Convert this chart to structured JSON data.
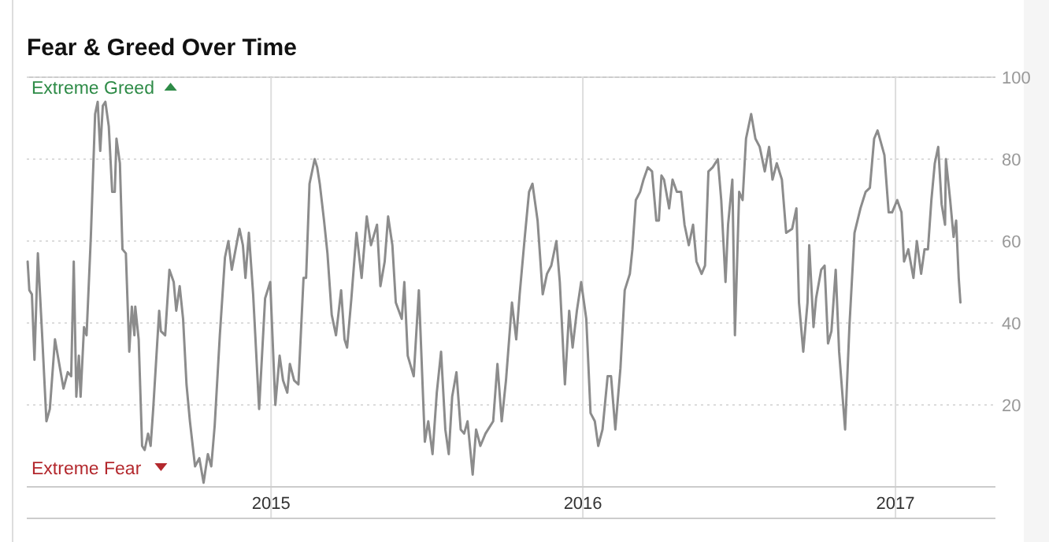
{
  "chart_data": {
    "type": "line",
    "title": "Fear & Greed Over Time",
    "annotations": [
      "Extreme Greed",
      "Extreme Fear"
    ],
    "x": [
      "2014-03-22",
      "2014-03-24",
      "2014-03-27",
      "2014-03-30",
      "2014-04-03",
      "2014-04-08",
      "2014-04-13",
      "2014-04-17",
      "2014-04-23",
      "2014-04-28",
      "2014-05-03",
      "2014-05-08",
      "2014-05-12",
      "2014-05-15",
      "2014-05-18",
      "2014-05-21",
      "2014-05-23",
      "2014-05-27",
      "2014-05-30",
      "2014-06-04",
      "2014-06-09",
      "2014-06-12",
      "2014-06-15",
      "2014-06-18",
      "2014-06-21",
      "2014-06-25",
      "2014-06-29",
      "2014-07-02",
      "2014-07-04",
      "2014-07-08",
      "2014-07-11",
      "2014-07-15",
      "2014-07-19",
      "2014-07-22",
      "2014-07-25",
      "2014-07-26",
      "2014-07-30",
      "2014-08-03",
      "2014-08-06",
      "2014-08-10",
      "2014-08-13",
      "2014-08-16",
      "2014-08-23",
      "2014-08-25",
      "2014-08-30",
      "2014-09-04",
      "2014-09-09",
      "2014-09-12",
      "2014-09-16",
      "2014-09-20",
      "2014-09-24",
      "2014-09-28",
      "2014-10-04",
      "2014-10-09",
      "2014-10-14",
      "2014-10-19",
      "2014-10-23",
      "2014-10-27",
      "2014-11-02",
      "2014-11-08",
      "2014-11-12",
      "2014-11-16",
      "2014-11-25",
      "2014-11-29",
      "2014-12-02",
      "2014-12-06",
      "2014-12-11",
      "2014-12-18",
      "2014-12-25",
      "2014-12-31",
      "2015-01-06",
      "2015-01-11",
      "2015-01-15",
      "2015-01-20",
      "2015-01-23",
      "2015-01-28",
      "2015-02-02",
      "2015-02-08",
      "2015-02-11",
      "2015-02-15",
      "2015-02-21",
      "2015-02-24",
      "2015-02-27",
      "2015-03-04",
      "2015-03-08",
      "2015-03-13",
      "2015-03-18",
      "2015-03-24",
      "2015-03-28",
      "2015-03-31",
      "2015-04-05",
      "2015-04-11",
      "2015-04-17",
      "2015-04-23",
      "2015-04-28",
      "2015-05-05",
      "2015-05-09",
      "2015-05-14",
      "2015-05-18",
      "2015-05-23",
      "2015-05-27",
      "2015-06-03",
      "2015-06-06",
      "2015-06-10",
      "2015-06-17",
      "2015-06-23",
      "2015-06-30",
      "2015-07-04",
      "2015-07-09",
      "2015-07-14",
      "2015-07-19",
      "2015-07-24",
      "2015-07-28",
      "2015-08-01",
      "2015-08-06",
      "2015-08-11",
      "2015-08-15",
      "2015-08-19",
      "2015-08-25",
      "2015-08-29",
      "2015-09-03",
      "2015-09-09",
      "2015-09-18",
      "2015-09-23",
      "2015-09-28",
      "2015-10-03",
      "2015-10-10",
      "2015-10-15",
      "2015-10-19",
      "2015-10-25",
      "2015-10-30",
      "2015-11-03",
      "2015-11-09",
      "2015-11-15",
      "2015-11-20",
      "2015-11-25",
      "2015-12-01",
      "2015-12-05",
      "2015-12-11",
      "2015-12-16",
      "2015-12-20",
      "2015-12-25",
      "2015-12-30",
      "2016-01-05",
      "2016-01-10",
      "2016-01-15",
      "2016-01-19",
      "2016-01-24",
      "2016-01-30",
      "2016-02-03",
      "2016-02-08",
      "2016-02-14",
      "2016-02-19",
      "2016-02-25",
      "2016-02-28",
      "2016-03-03",
      "2016-03-08",
      "2016-03-12",
      "2016-03-17",
      "2016-03-22",
      "2016-03-27",
      "2016-03-30",
      "2016-04-02",
      "2016-04-05",
      "2016-04-11",
      "2016-04-15",
      "2016-04-20",
      "2016-04-25",
      "2016-04-29",
      "2016-05-04",
      "2016-05-09",
      "2016-05-13",
      "2016-05-19",
      "2016-05-23",
      "2016-05-27",
      "2016-06-01",
      "2016-06-07",
      "2016-06-11",
      "2016-06-16",
      "2016-06-19",
      "2016-06-24",
      "2016-06-27",
      "2016-07-02",
      "2016-07-06",
      "2016-07-10",
      "2016-07-16",
      "2016-07-21",
      "2016-07-26",
      "2016-08-01",
      "2016-08-06",
      "2016-08-10",
      "2016-08-15",
      "2016-08-21",
      "2016-08-26",
      "2016-09-02",
      "2016-09-07",
      "2016-09-10",
      "2016-09-15",
      "2016-09-20",
      "2016-09-22",
      "2016-09-27",
      "2016-09-30",
      "2016-10-06",
      "2016-10-10",
      "2016-10-14",
      "2016-10-18",
      "2016-10-23",
      "2016-10-27",
      "2016-11-03",
      "2016-11-08",
      "2016-11-14",
      "2016-11-21",
      "2016-11-27",
      "2016-12-02",
      "2016-12-07",
      "2016-12-11",
      "2016-12-19",
      "2016-12-24",
      "2016-12-28",
      "2017-01-03",
      "2017-01-08",
      "2017-01-11",
      "2017-01-16",
      "2017-01-22",
      "2017-01-26",
      "2017-01-31",
      "2017-02-04",
      "2017-02-08",
      "2017-02-12",
      "2017-02-16",
      "2017-02-20",
      "2017-02-24",
      "2017-02-28",
      "2017-03-01",
      "2017-03-06",
      "2017-03-10",
      "2017-03-13",
      "2017-03-16",
      "2017-03-18"
    ],
    "series": [
      {
        "color": "#8c8c8c",
        "values": [
          55,
          48,
          47,
          31,
          57,
          37,
          16,
          19,
          36,
          30,
          24,
          28,
          27,
          55,
          22,
          32,
          22,
          39,
          37,
          61,
          91,
          94,
          82,
          93,
          94,
          88,
          72,
          72,
          85,
          79,
          58,
          57,
          33,
          44,
          37,
          44,
          36,
          10,
          9,
          13,
          10,
          19,
          43,
          38,
          37,
          53,
          50,
          43,
          49,
          41,
          25,
          16,
          5,
          7,
          1,
          8,
          5,
          15,
          37,
          56,
          60,
          53,
          63,
          59,
          51,
          62,
          47,
          19,
          46,
          50,
          20,
          32,
          26,
          23,
          30,
          26,
          25,
          51,
          51,
          74,
          80,
          78,
          74,
          65,
          57,
          42,
          37,
          48,
          36,
          34,
          46,
          62,
          51,
          66,
          59,
          64,
          49,
          55,
          66,
          59,
          45,
          41,
          50,
          32,
          27,
          48,
          11,
          16,
          8,
          23,
          33,
          14,
          8,
          22,
          28,
          14,
          13,
          16,
          3,
          14,
          10,
          13,
          16,
          30,
          16,
          26,
          45,
          36,
          47,
          61,
          72,
          74,
          65,
          47,
          52,
          54,
          60,
          50,
          25,
          43,
          34,
          43,
          50,
          41,
          18,
          16,
          10,
          14,
          27,
          27,
          14,
          29,
          48,
          52,
          58,
          70,
          72,
          75,
          78,
          77,
          65,
          65,
          76,
          75,
          68,
          75,
          72,
          72,
          64,
          59,
          64,
          55,
          52,
          54,
          77,
          78,
          80,
          70,
          50,
          64,
          75,
          37,
          72,
          70,
          85,
          91,
          85,
          83,
          77,
          83,
          75,
          79,
          75,
          62,
          63,
          68,
          45,
          33,
          45,
          59,
          39,
          46,
          53,
          54,
          35,
          38,
          53,
          33,
          14,
          39,
          62,
          68,
          72,
          73,
          85,
          87,
          81,
          67,
          67,
          70,
          67,
          55,
          58,
          51,
          60,
          52,
          58,
          58,
          70,
          79,
          83,
          69,
          64,
          80,
          70,
          61,
          65,
          51,
          45
        ]
      }
    ],
    "xlim": [
      "2014-03-21",
      "2017-04-28"
    ],
    "xticks": [
      {
        "value": "2015-01-01",
        "label": "2015"
      },
      {
        "value": "2016-01-01",
        "label": "2016"
      },
      {
        "value": "2017-01-01",
        "label": "2017"
      }
    ],
    "ylim": [
      0,
      100
    ],
    "yticks": [
      20,
      40,
      60,
      80,
      100
    ],
    "grid": true,
    "line_style": "solid",
    "marker": "none"
  }
}
